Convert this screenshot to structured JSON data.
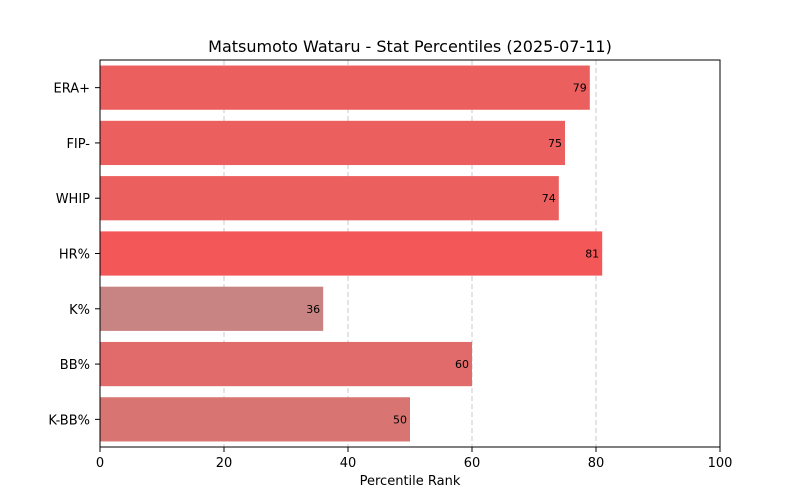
{
  "chart_data": {
    "type": "bar",
    "orientation": "horizontal",
    "title": "Matsumoto Wataru - Stat Percentiles (2025-07-11)",
    "xlabel": "Percentile Rank",
    "ylabel": "",
    "xlim": [
      0,
      100
    ],
    "xticks": [
      0,
      20,
      40,
      60,
      80,
      100
    ],
    "grid": "x-dashed",
    "categories": [
      "ERA+",
      "FIP-",
      "WHIP",
      "HR%",
      "K%",
      "BB%",
      "K-BB%"
    ],
    "values": [
      79,
      75,
      74,
      81,
      36,
      60,
      50
    ],
    "colors": [
      "#ec5f5f",
      "#ec5f5f",
      "#ec5f5f",
      "#f45757",
      "#c88482",
      "#e16b6a",
      "#d87572"
    ]
  }
}
